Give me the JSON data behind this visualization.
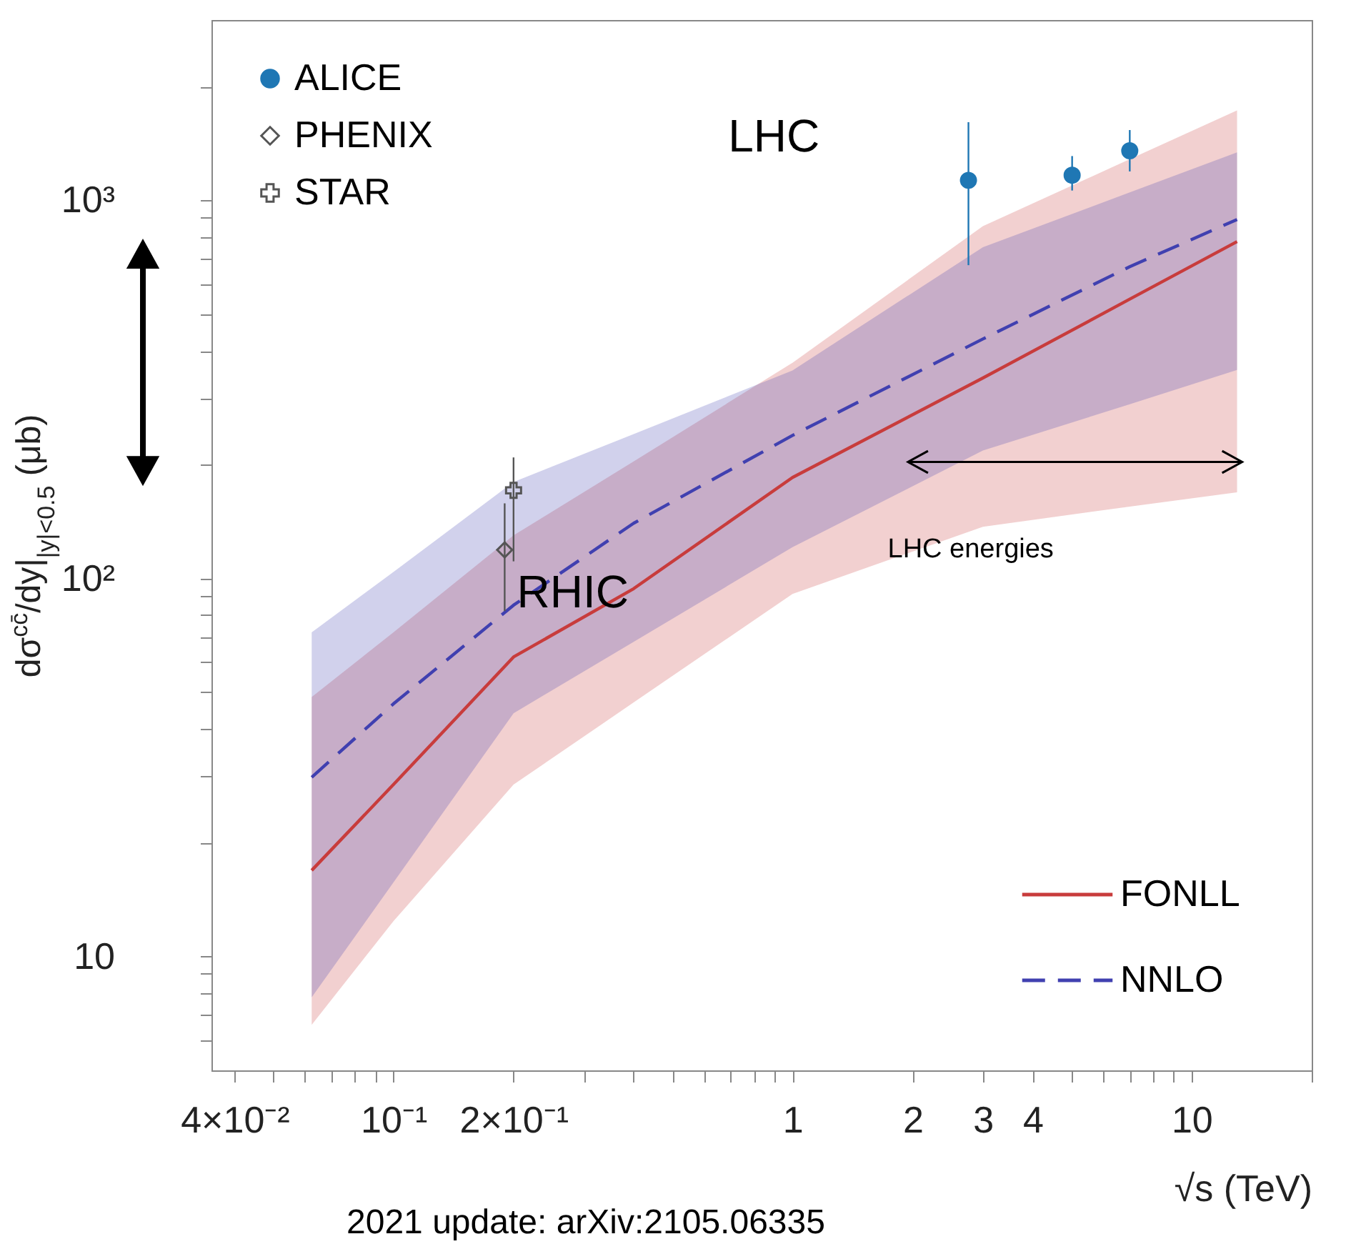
{
  "chart_data": {
    "type": "line",
    "xlabel": "√s (TeV)",
    "ylabel": "dσ$^{cc̄}$/dy|$_{|y|<0.5}$ (μb)",
    "log": "xy",
    "legend": "top left",
    "xlim": [
      0.035,
      20
    ],
    "ylim": [
      5,
      3000
    ],
    "xticks": [
      {
        "value": 0.04,
        "label": "4×10⁻²"
      },
      {
        "value": 0.05,
        "label": null
      },
      {
        "value": 0.06,
        "label": null
      },
      {
        "value": 0.07,
        "label": null
      },
      {
        "value": 0.08,
        "label": null
      },
      {
        "value": 0.09,
        "label": null
      },
      {
        "value": 0.1,
        "label": "10⁻¹"
      },
      {
        "value": 0.2,
        "label": "2×10⁻¹"
      },
      {
        "value": 0.3,
        "label": null
      },
      {
        "value": 0.4,
        "label": null
      },
      {
        "value": 0.5,
        "label": null
      },
      {
        "value": 0.6,
        "label": null
      },
      {
        "value": 0.7,
        "label": null
      },
      {
        "value": 0.8,
        "label": null
      },
      {
        "value": 0.9,
        "label": null
      },
      1,
      2,
      3,
      4,
      {
        "value": 5,
        "label": null
      },
      {
        "value": 6,
        "label": null
      },
      {
        "value": 7,
        "label": null
      },
      {
        "value": 8,
        "label": null
      },
      {
        "value": 9,
        "label": null
      },
      10,
      {
        "value": 20,
        "label": null
      }
    ],
    "yticks": [
      {
        "value": 6,
        "label": null
      },
      {
        "value": 7,
        "label": null
      },
      {
        "value": 8,
        "label": null
      },
      {
        "value": 9,
        "label": null
      },
      10,
      {
        "value": 20,
        "label": null
      },
      {
        "value": 30,
        "label": null
      },
      {
        "value": 40,
        "label": null
      },
      {
        "value": 50,
        "label": null
      },
      {
        "value": 60,
        "label": null
      },
      {
        "value": 70,
        "label": null
      },
      {
        "value": 80,
        "label": null
      },
      {
        "value": 90,
        "label": null
      },
      {
        "value": 100,
        "label": "10²"
      },
      {
        "value": 200,
        "label": null
      },
      {
        "value": 300,
        "label": null
      },
      {
        "value": 400,
        "label": null
      },
      {
        "value": 500,
        "label": null
      },
      {
        "value": 600,
        "label": null
      },
      {
        "value": 700,
        "label": null
      },
      {
        "value": 800,
        "label": null
      },
      {
        "value": 900,
        "label": null
      },
      {
        "value": 1000,
        "label": "10³"
      },
      {
        "value": 2000,
        "label": null
      }
    ],
    "series": [
      {
        "name": "FONLL",
        "type": "line",
        "color": "#c83c3c",
        "line_style": "solid",
        "x": [
          0.0624,
          0.1,
          0.2,
          0.4,
          1,
          3,
          7,
          13
        ],
        "values": [
          16.9,
          28.5,
          62,
          94,
          185,
          339,
          548,
          778
        ],
        "lower": [
          6.6,
          12.4,
          28.5,
          47,
          91,
          137,
          155,
          169
        ],
        "upper": [
          48.6,
          72,
          130,
          204,
          372,
          855,
          1285,
          1730
        ]
      },
      {
        "name": "NNLO",
        "type": "line",
        "color": "#4040b0",
        "line_style": "dashed",
        "x": [
          0.0624,
          0.1,
          0.2,
          0.4,
          1,
          3,
          7,
          13
        ],
        "values": [
          29.8,
          46.6,
          85,
          140,
          239,
          430,
          668,
          890
        ],
        "lower": [
          7.8,
          15.7,
          44,
          68,
          121,
          218,
          289,
          356
        ],
        "upper": [
          72,
          104,
          180,
          241,
          355,
          752,
          1050,
          1340
        ]
      },
      {
        "name": "ALICE",
        "type": "scatter",
        "color": "#1f77b4",
        "marker": "circle",
        "x": [
          2.76,
          5.02,
          7
        ],
        "values": [
          1130,
          1166,
          1353
        ],
        "errors": [
          [
            674,
            1610
          ],
          [
            1062,
            1310
          ],
          [
            1193,
            1535
          ]
        ]
      },
      {
        "name": "PHENIX",
        "type": "scatter",
        "color": "#555555",
        "marker": "diamond",
        "x": [
          0.19
        ],
        "values": [
          119
        ],
        "errors": [
          [
            82,
            158
          ]
        ]
      },
      {
        "name": "STAR",
        "type": "scatter",
        "color": "#555555",
        "marker": "cross",
        "x": [
          0.2
        ],
        "values": [
          171
        ],
        "errors": [
          [
            111,
            209
          ]
        ]
      }
    ],
    "annotations": [
      "LHC",
      "RHIC",
      "LHC energies",
      "2021 update: arXiv:2105.06335"
    ]
  }
}
